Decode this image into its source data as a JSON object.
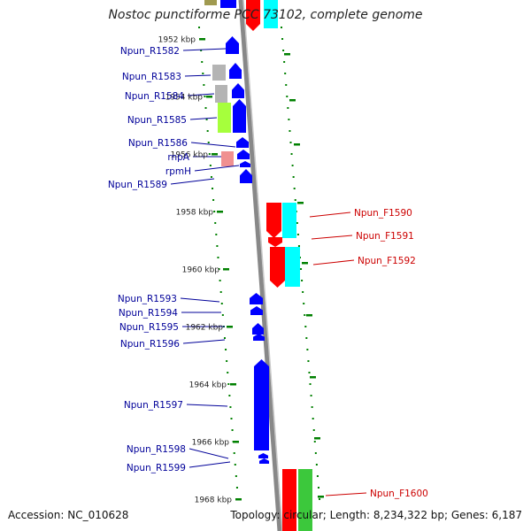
{
  "title": "Nostoc punctiforme PCC 73102, complete genome",
  "accession": "Accession: NC_010628",
  "topology": "Topology: circular; Length: 8,234,322 bp; Genes: 6,187",
  "colors": {
    "cds_reverse": "#0000ff",
    "cds_forward": "#ff0000",
    "rna_gray": "#b4b4b4",
    "rna_green": "#a6ff3c",
    "rna_pink": "#f09090",
    "forward_cyan": "#00ffff",
    "forward_green": "#3cc83c",
    "reverse_label": "#000099",
    "forward_label": "#cc0000",
    "tick": "#008000",
    "backbone": "#888888"
  },
  "scale": {
    "unit": "kbp",
    "ticks": [
      "1952 kbp",
      "1954 kbp",
      "1956 kbp",
      "1958 kbp",
      "1960 kbp",
      "1962 kbp",
      "1964 kbp",
      "1966 kbp",
      "1968 kbp"
    ]
  },
  "reverse_genes": [
    "Npun_R1582",
    "Npun_R1583",
    "Npun_R1584",
    "Npun_R1585",
    "Npun_R1586",
    "rnpA",
    "rpmH",
    "Npun_R1589",
    "Npun_R1593",
    "Npun_R1594",
    "Npun_R1595",
    "Npun_R1596",
    "Npun_R1597",
    "Npun_R1598",
    "Npun_R1599"
  ],
  "forward_genes": [
    "Npun_F1590",
    "Npun_F1591",
    "Npun_F1592",
    "Npun_F1600"
  ]
}
